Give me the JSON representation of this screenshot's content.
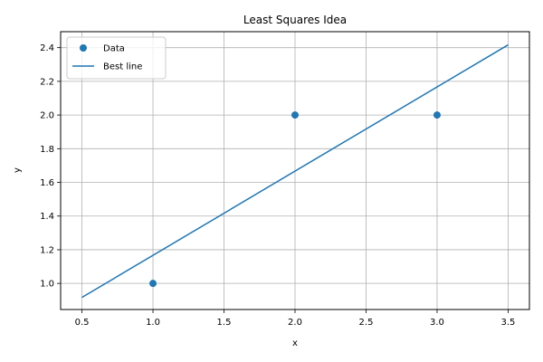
{
  "chart_data": {
    "type": "scatter",
    "title": "Least Squares Idea",
    "xlabel": "x",
    "ylabel": "y",
    "xlim": [
      0.35,
      3.65
    ],
    "ylim": [
      0.845,
      2.495
    ],
    "xticks": [
      0.5,
      1.0,
      1.5,
      2.0,
      2.5,
      3.0,
      3.5
    ],
    "xtick_labels": [
      "0.5",
      "1.0",
      "1.5",
      "2.0",
      "2.5",
      "3.0",
      "3.5"
    ],
    "yticks": [
      1.0,
      1.2,
      1.4,
      1.6,
      1.8,
      2.0,
      2.2,
      2.4
    ],
    "ytick_labels": [
      "1.0",
      "1.2",
      "1.4",
      "1.6",
      "1.8",
      "2.0",
      "2.2",
      "2.4"
    ],
    "grid": true,
    "legend_position": "top-left",
    "series": [
      {
        "name": "Data",
        "kind": "scatter",
        "color": "#1f77b4",
        "points": [
          {
            "x": 1.0,
            "y": 1.0
          },
          {
            "x": 2.0,
            "y": 2.0
          },
          {
            "x": 3.0,
            "y": 2.0
          }
        ]
      },
      {
        "name": "Best line",
        "kind": "line",
        "color": "#1f77b4",
        "points": [
          {
            "x": 0.5,
            "y": 0.9167
          },
          {
            "x": 3.5,
            "y": 2.4167
          }
        ]
      }
    ]
  }
}
